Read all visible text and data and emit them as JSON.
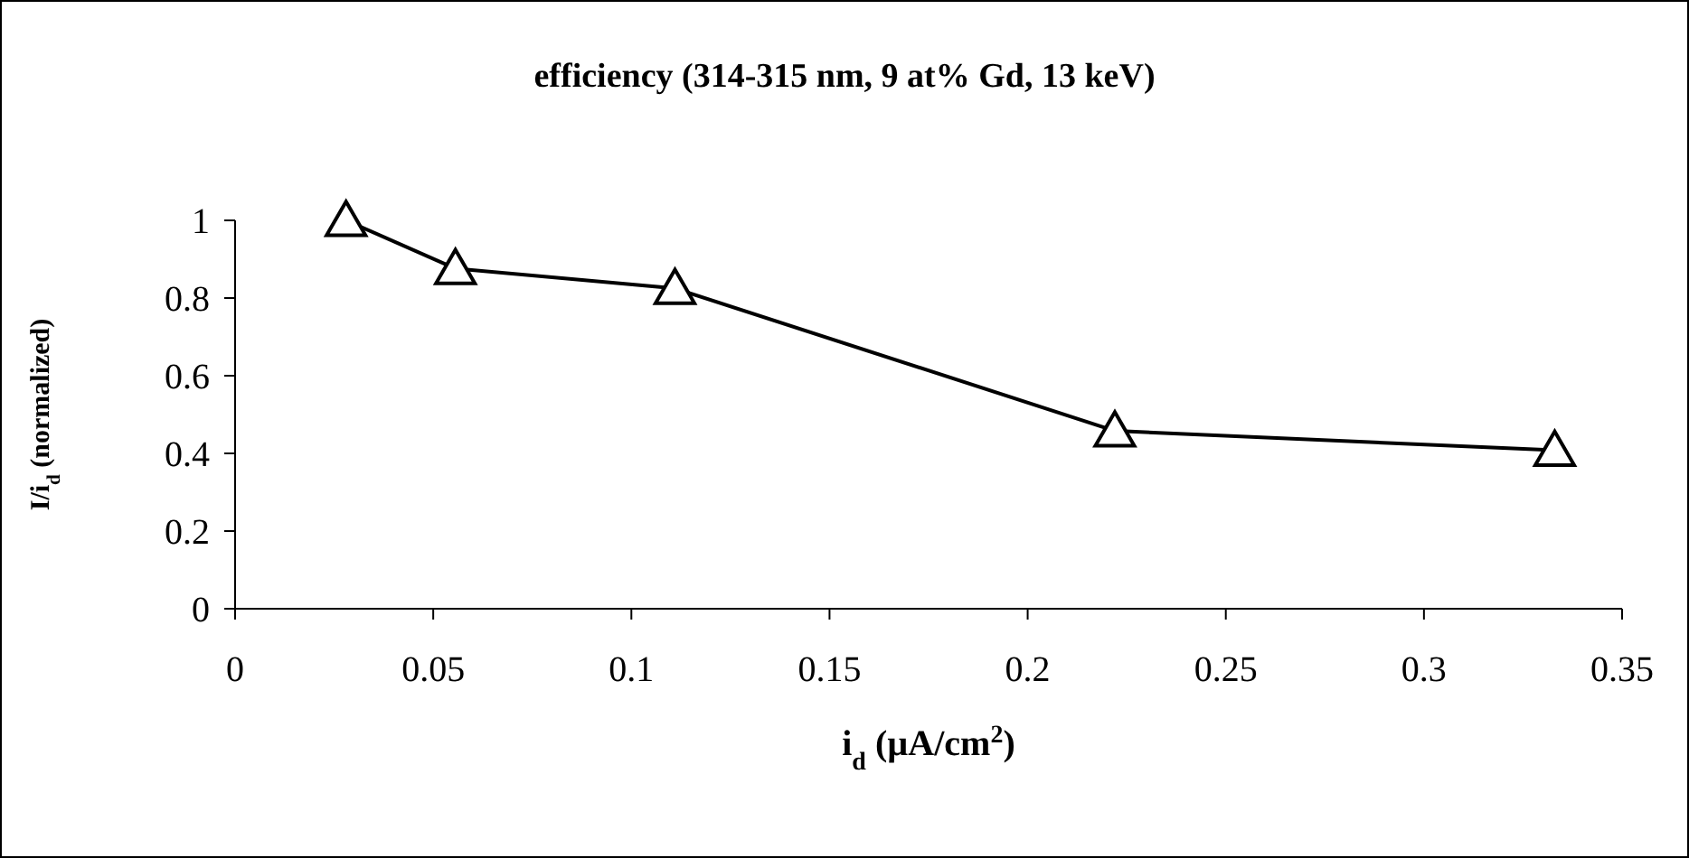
{
  "chart_data": {
    "type": "line",
    "title": "efficiency (314-315 nm, 9 at% Gd, 13 keV)",
    "xlabel": "i$_{d}$ (µA/cm$^{2}$)",
    "ylabel": "I/i$_{d}$ (normalized)",
    "x": [
      0.028,
      0.0556,
      0.111,
      0.222,
      0.333
    ],
    "series": [
      {
        "color": "#000000",
        "values": [
          1.0,
          0.876,
          0.825,
          0.458,
          0.408
        ]
      }
    ],
    "xlim": [
      0,
      0.35
    ],
    "xticks": [
      0,
      0.05,
      0.1,
      0.15,
      0.2,
      0.25,
      0.3,
      0.35
    ],
    "ylim": [
      0,
      1
    ],
    "yticks": [
      0,
      0.2,
      0.4,
      0.6,
      0.8,
      1
    ],
    "grid": false,
    "marker": "triangle",
    "line_style": "solid"
  }
}
